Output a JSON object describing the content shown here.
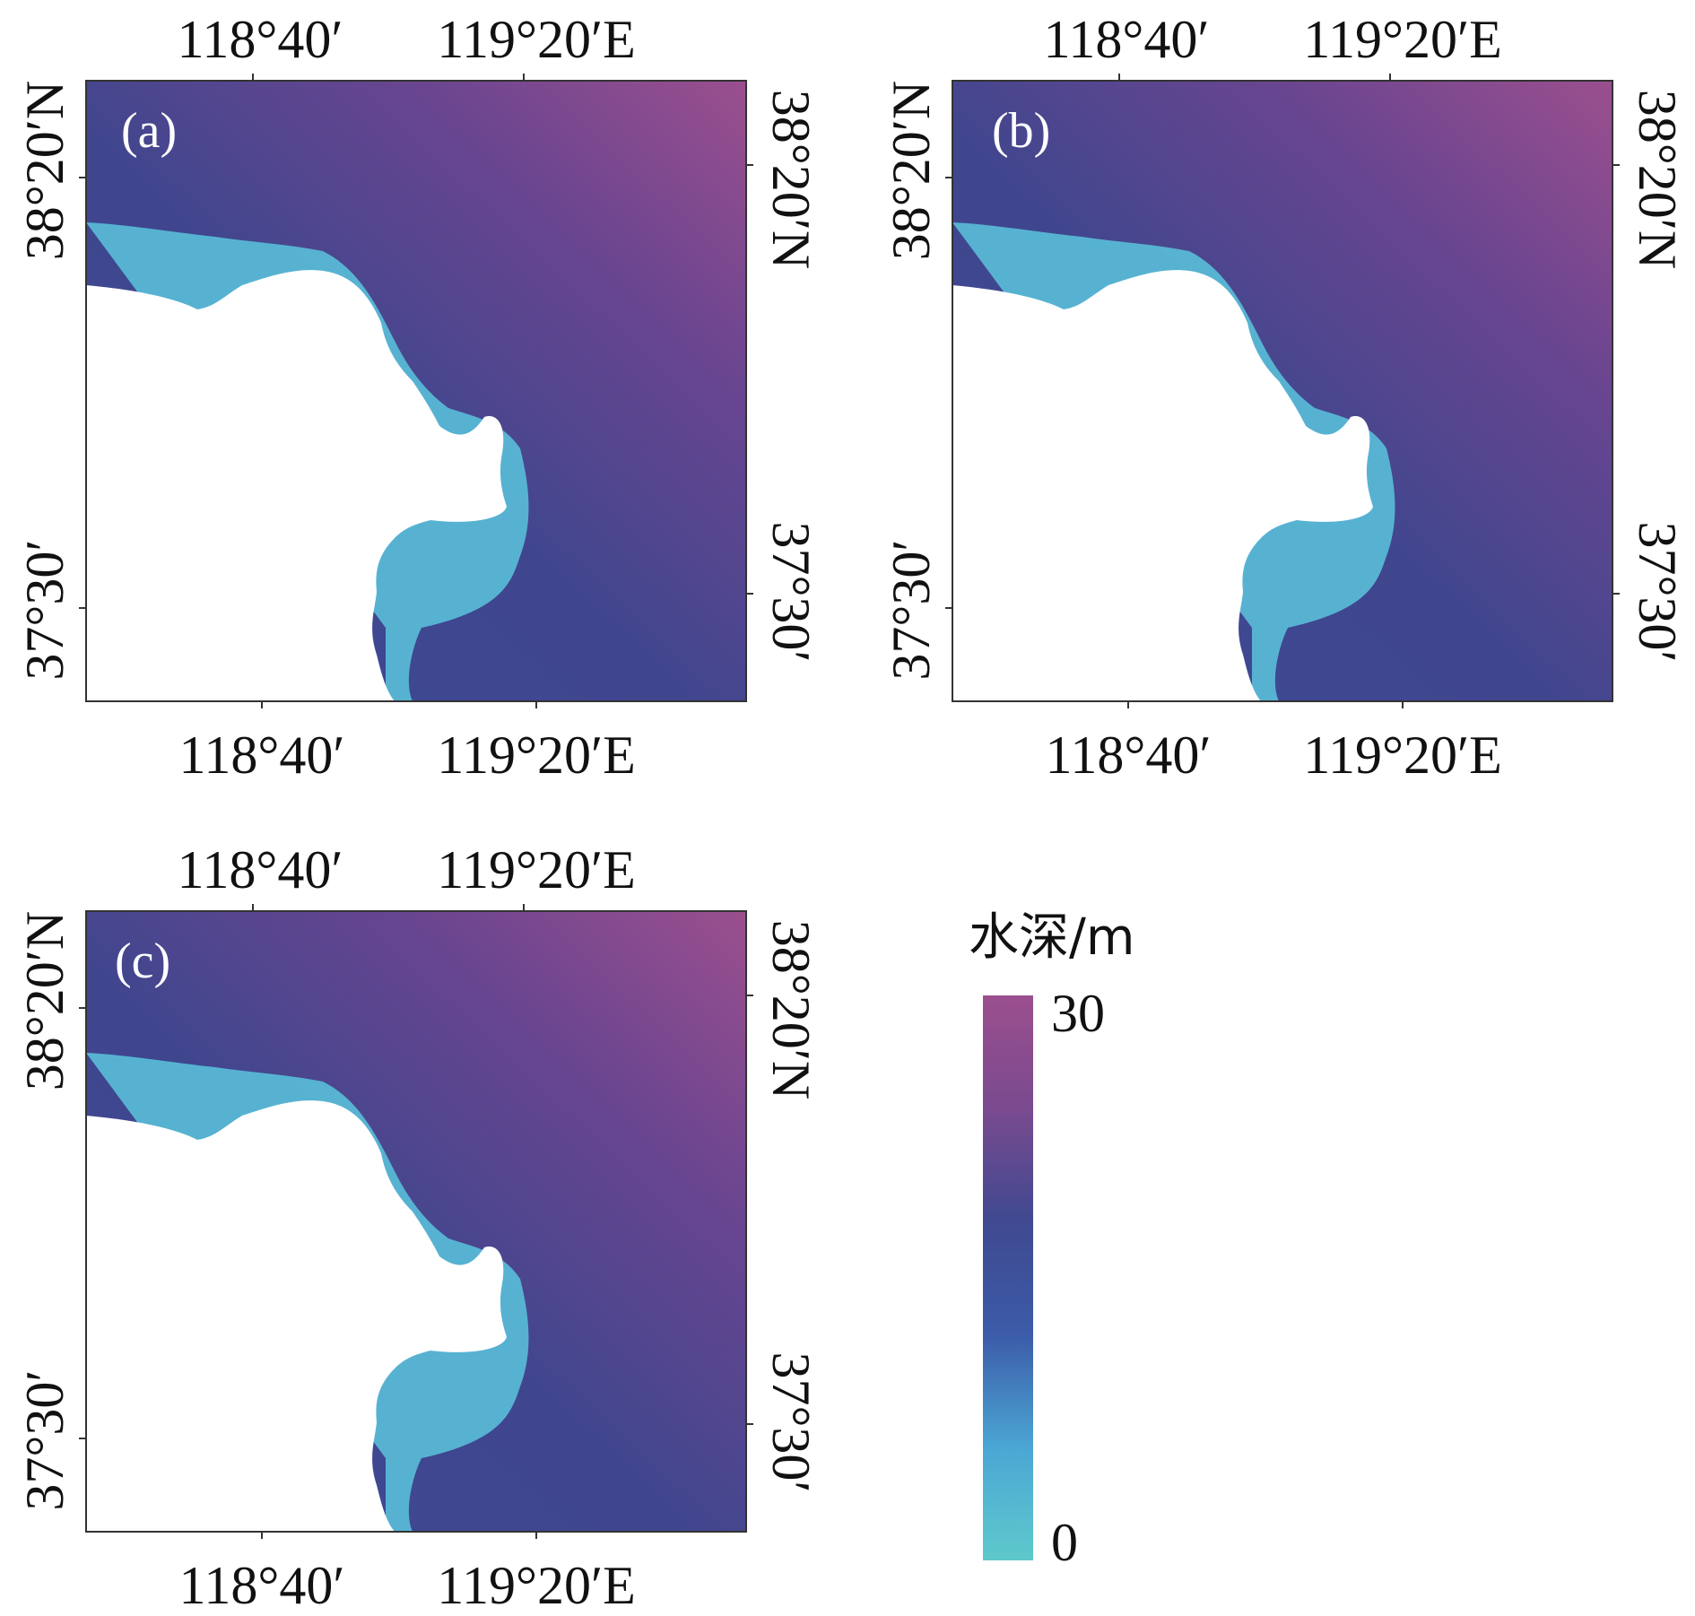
{
  "panels": [
    {
      "label": "(a)",
      "top_ticks": [
        "118°40′",
        "119°20′E"
      ],
      "bottom_ticks": [
        "118°40′",
        "119°20′E"
      ],
      "left_ticks": [
        "38°20′N",
        "37°30′"
      ],
      "right_ticks": [
        "38°20′N",
        "37°30′"
      ]
    },
    {
      "label": "(b)",
      "top_ticks": [
        "118°40′",
        "119°20′E"
      ],
      "bottom_ticks": [
        "118°40′",
        "119°20′E"
      ],
      "left_ticks": [
        "38°20′N",
        "37°30′"
      ],
      "right_ticks": [
        "38°20′N",
        "37°30′"
      ]
    },
    {
      "label": "(c)",
      "top_ticks": [
        "118°40′",
        "119°20′E"
      ],
      "bottom_ticks": [
        "118°40′",
        "119°20′E"
      ],
      "left_ticks": [
        "38°20′N",
        "37°30′"
      ],
      "right_ticks": [
        "38°20′N",
        "37°30′"
      ]
    }
  ],
  "legend": {
    "title": "水深/m",
    "max_label": "30",
    "min_label": "0",
    "min_value": 0,
    "max_value": 30,
    "colors": [
      "#9b4f8e",
      "#7a4a8f",
      "#3f4990",
      "#3c5ba8",
      "#4ba6d4",
      "#5ec9cc"
    ]
  },
  "colors": {
    "deep": "#9b4f8e",
    "mid_deep": "#6b4590",
    "mid": "#3e468c",
    "shallow": "#4a93cc",
    "very_shallow": "#5ec9cc",
    "land": "#ffffff"
  }
}
